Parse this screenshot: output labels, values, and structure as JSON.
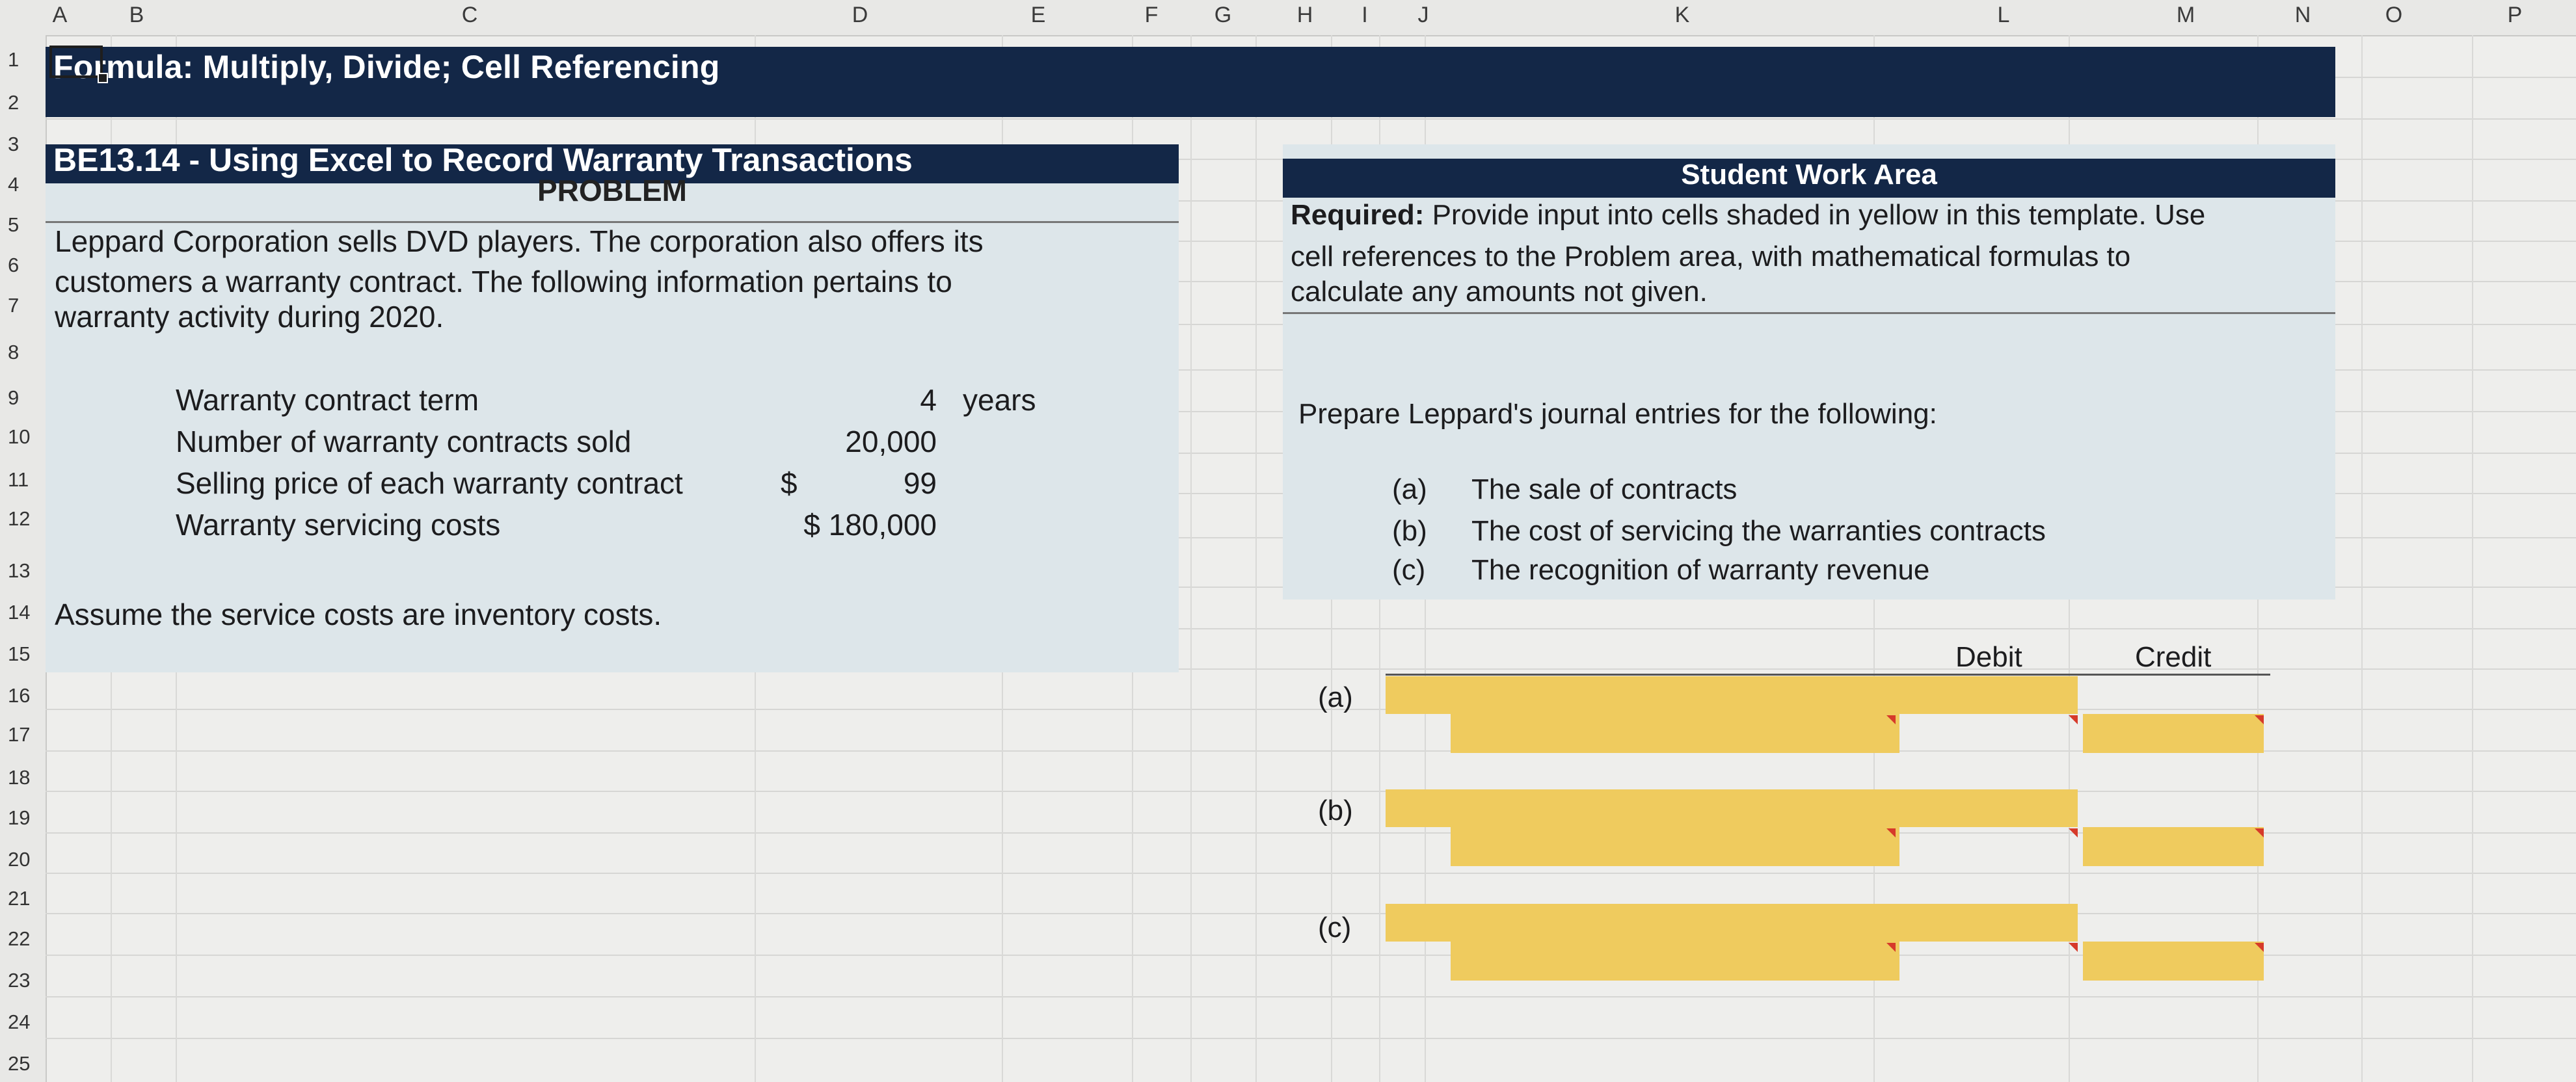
{
  "columns": [
    "A",
    "B",
    "C",
    "D",
    "E",
    "F",
    "G",
    "H",
    "I",
    "J",
    "K",
    "L",
    "M",
    "N",
    "O",
    "P"
  ],
  "rows": [
    "1",
    "2",
    "3",
    "4",
    "5",
    "6",
    "7",
    "8",
    "9",
    "10",
    "11",
    "12",
    "13",
    "14",
    "15",
    "16",
    "17",
    "18",
    "19",
    "20",
    "21",
    "22",
    "23",
    "24",
    "25"
  ],
  "title": "Formula: Multiply, Divide; Cell Referencing",
  "problem": {
    "heading": "BE13.14 - Using Excel to Record Warranty Transactions",
    "label": "PROBLEM",
    "intro": [
      "Leppard Corporation sells DVD players. The corporation also offers its",
      "customers a warranty contract. The following information pertains to",
      "warranty activity during 2020."
    ],
    "items": [
      {
        "label": "Warranty contract term",
        "currency": "",
        "value": "4",
        "unit": "years"
      },
      {
        "label": "Number of warranty contracts sold",
        "currency": "",
        "value": "20,000",
        "unit": ""
      },
      {
        "label": "Selling price of each warranty contract",
        "currency": "$",
        "value": "99",
        "unit": ""
      },
      {
        "label": "Warranty servicing costs",
        "currency": "",
        "value": "$ 180,000",
        "unit": ""
      }
    ],
    "note": "Assume the service costs are inventory costs."
  },
  "student_area": {
    "heading": "Student Work Area",
    "required_bold": "Required:",
    "required_text": [
      " Provide input into cells shaded in yellow in this template. Use",
      "cell references to the Problem area, with mathematical formulas to",
      "calculate any amounts not given."
    ],
    "prompt": "Prepare Leppard's journal entries for the following:",
    "parts": [
      {
        "letter": "(a)",
        "text": "The sale of contracts"
      },
      {
        "letter": "(b)",
        "text": "The cost of servicing the warranties contracts"
      },
      {
        "letter": "(c)",
        "text": "The recognition of warranty revenue"
      }
    ],
    "journal": {
      "debit_label": "Debit",
      "credit_label": "Credit",
      "entries": [
        "(a)",
        "(b)",
        "(c)"
      ]
    }
  },
  "colors": {
    "header_navy": "#132747",
    "input_yellow": "#efcb5e",
    "panel_blue": "#dde6ea",
    "comment_red": "#d63a2a"
  }
}
